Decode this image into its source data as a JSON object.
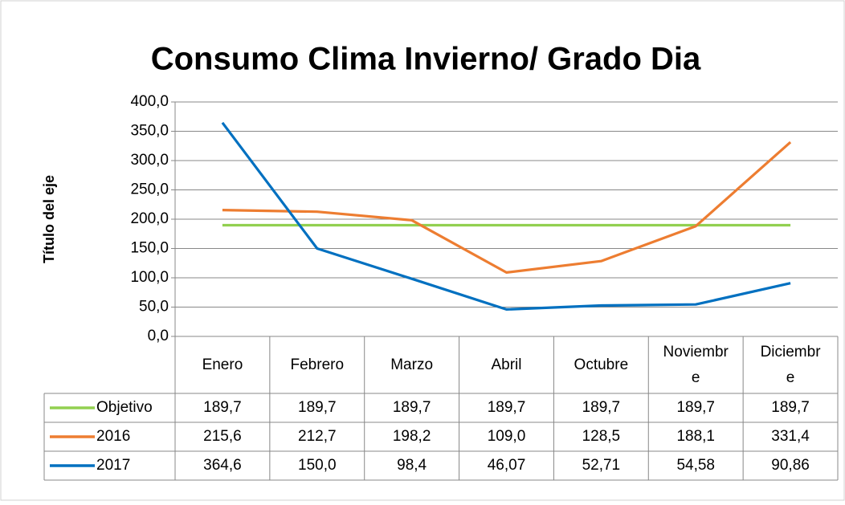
{
  "chart_data": {
    "type": "line",
    "title": "Consumo Clima Invierno/ Grado Dia",
    "y_label": "Título del eje",
    "categories": [
      "Enero",
      "Febrero",
      "Marzo",
      "Abril",
      "Octubre",
      "Noviembre",
      "Diciembre"
    ],
    "series": [
      {
        "name": "Objetivo",
        "color": "#92d050",
        "values": [
          189.7,
          189.7,
          189.7,
          189.7,
          189.7,
          189.7,
          189.7
        ],
        "value_labels": [
          "189,7",
          "189,7",
          "189,7",
          "189,7",
          "189,7",
          "189,7",
          "189,7"
        ]
      },
      {
        "name": "2016",
        "color": "#ed7d31",
        "values": [
          215.6,
          212.7,
          198.2,
          109.0,
          128.5,
          188.1,
          331.4
        ],
        "value_labels": [
          "215,6",
          "212,7",
          "198,2",
          "109,0",
          "128,5",
          "188,1",
          "331,4"
        ]
      },
      {
        "name": "2017",
        "color": "#0070c0",
        "values": [
          364.6,
          150.0,
          98.4,
          46.07,
          52.71,
          54.58,
          90.86
        ],
        "value_labels": [
          "364,6",
          "150,0",
          "98,4",
          "46,07",
          "52,71",
          "54,58",
          "90,86"
        ]
      }
    ],
    "ylim": [
      0,
      400
    ],
    "yticks": [
      {
        "value": 0,
        "label": "0,0"
      },
      {
        "value": 50,
        "label": "50,0"
      },
      {
        "value": 100,
        "label": "100,0"
      },
      {
        "value": 150,
        "label": "150,0"
      },
      {
        "value": 200,
        "label": "200,0"
      },
      {
        "value": 250,
        "label": "250,0"
      },
      {
        "value": 300,
        "label": "300,0"
      },
      {
        "value": 350,
        "label": "350,0"
      },
      {
        "value": 400,
        "label": "400,0"
      }
    ],
    "grid": true,
    "legend": "data-table"
  }
}
